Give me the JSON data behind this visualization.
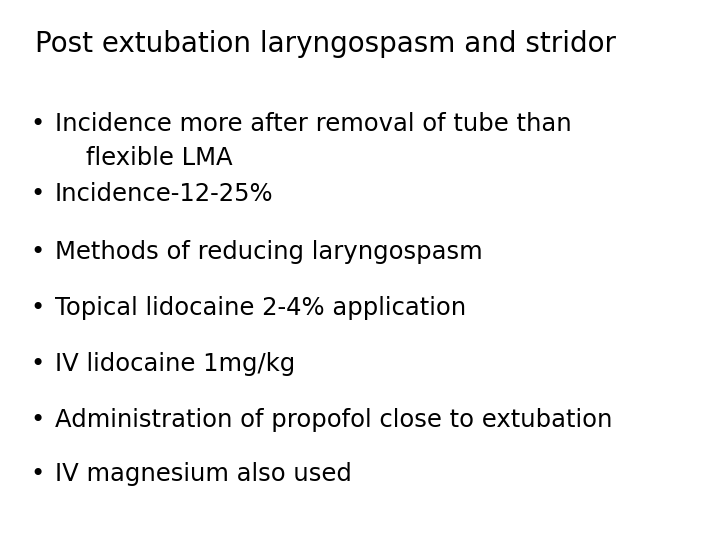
{
  "title": "Post extubation laryngospasm and stridor",
  "title_fontsize": 20,
  "title_color": "#000000",
  "bullet_points": [
    [
      "Incidence more after removal of tube than",
      "    flexible LMA"
    ],
    [
      "Incidence-12-25%"
    ],
    [
      "Methods of reducing laryngospasm"
    ],
    [
      "Topical lidocaine 2-4% application"
    ],
    [
      "IV lidocaine 1mg/kg"
    ],
    [
      "Administration of propofol close to extubation"
    ],
    [
      "IV magnesium also used"
    ]
  ],
  "bullet_fontsize": 17.5,
  "bullet_color": "#000000",
  "background_color": "#ffffff",
  "bullet_char": "•"
}
